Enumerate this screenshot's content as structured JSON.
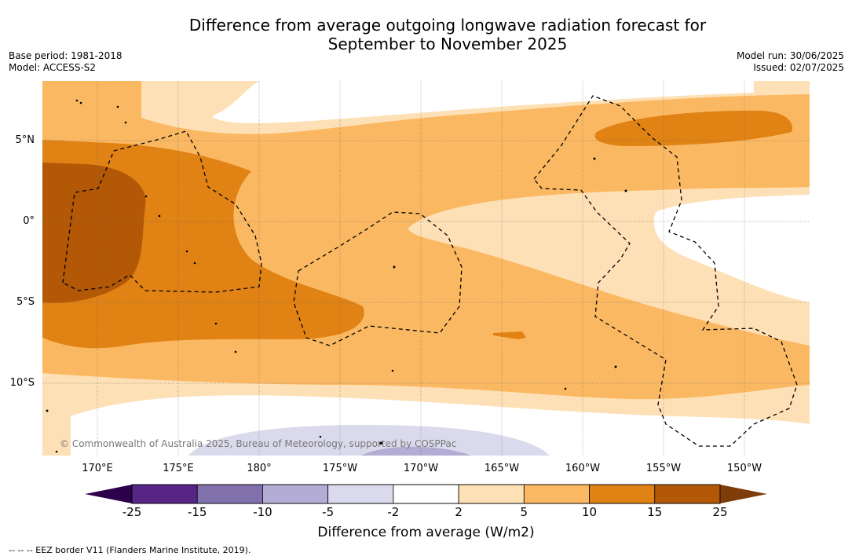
{
  "title_line1": "Difference from average outgoing longwave radiation forecast for",
  "title_line2": "September to November 2025",
  "base_period": "Base period: 1981-2018",
  "model": "Model: ACCESS-S2",
  "model_run": "Model run: 30/06/2025",
  "issued": "Issued: 02/07/2025",
  "copyright": "© Commonwealth of Australia 2025, Bureau of Meteorology, supported by COSPPac",
  "lat_labels": [
    "5°N",
    "0°",
    "5°S",
    "10°S"
  ],
  "lon_labels": [
    "170°E",
    "175°E",
    "180°",
    "175°W",
    "170°W",
    "165°W",
    "160°W",
    "155°W",
    "150°W"
  ],
  "colorbar": {
    "title": "Difference from average (W/m2)",
    "ticks": [
      "-25",
      "-15",
      "-10",
      "-5",
      "-2",
      "2",
      "5",
      "10",
      "15",
      "25"
    ],
    "colors": [
      "#562585",
      "#8071ad",
      "#b3acd4",
      "#dadaec",
      "#ffffff",
      "#fee0b6",
      "#fbb862",
      "#e08214",
      "#b35806"
    ],
    "under_color": "#2d004b",
    "over_color": "#7f3b08"
  },
  "legend_eez": "--  --  -- EEZ border V11 (Flanders Marine Institute, 2019)."
}
